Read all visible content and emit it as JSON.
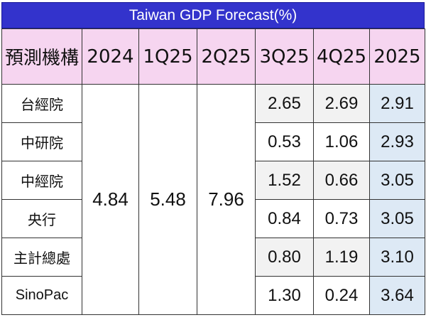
{
  "chart_data": {
    "type": "table",
    "title": "Taiwan GDP Forecast(%)",
    "columns": [
      "預測機構",
      "2024",
      "1Q25",
      "2Q25",
      "3Q25",
      "4Q25",
      "2025"
    ],
    "shared": {
      "2024": "4.84",
      "1Q25": "5.48",
      "2Q25": "7.96"
    },
    "rows": [
      {
        "institution": "台經院",
        "q3": "2.65",
        "q4": "2.69",
        "y2025": "2.91"
      },
      {
        "institution": "中研院",
        "q3": "0.53",
        "q4": "1.06",
        "y2025": "2.93"
      },
      {
        "institution": "中經院",
        "q3": "1.52",
        "q4": "0.66",
        "y2025": "3.05"
      },
      {
        "institution": "央行",
        "q3": "0.84",
        "q4": "0.73",
        "y2025": "3.05"
      },
      {
        "institution": "主計總處",
        "q3": "0.80",
        "q4": "1.19",
        "y2025": "3.10"
      },
      {
        "institution": "SinoPac",
        "q3": "1.30",
        "q4": "0.24",
        "y2025": "3.64"
      }
    ]
  },
  "colors": {
    "title_bg": "#3333cc",
    "header_bg": "#f6d5f0",
    "year_col_bg": "#dde9f5",
    "alt_row_bg": "#f2f2f2"
  }
}
